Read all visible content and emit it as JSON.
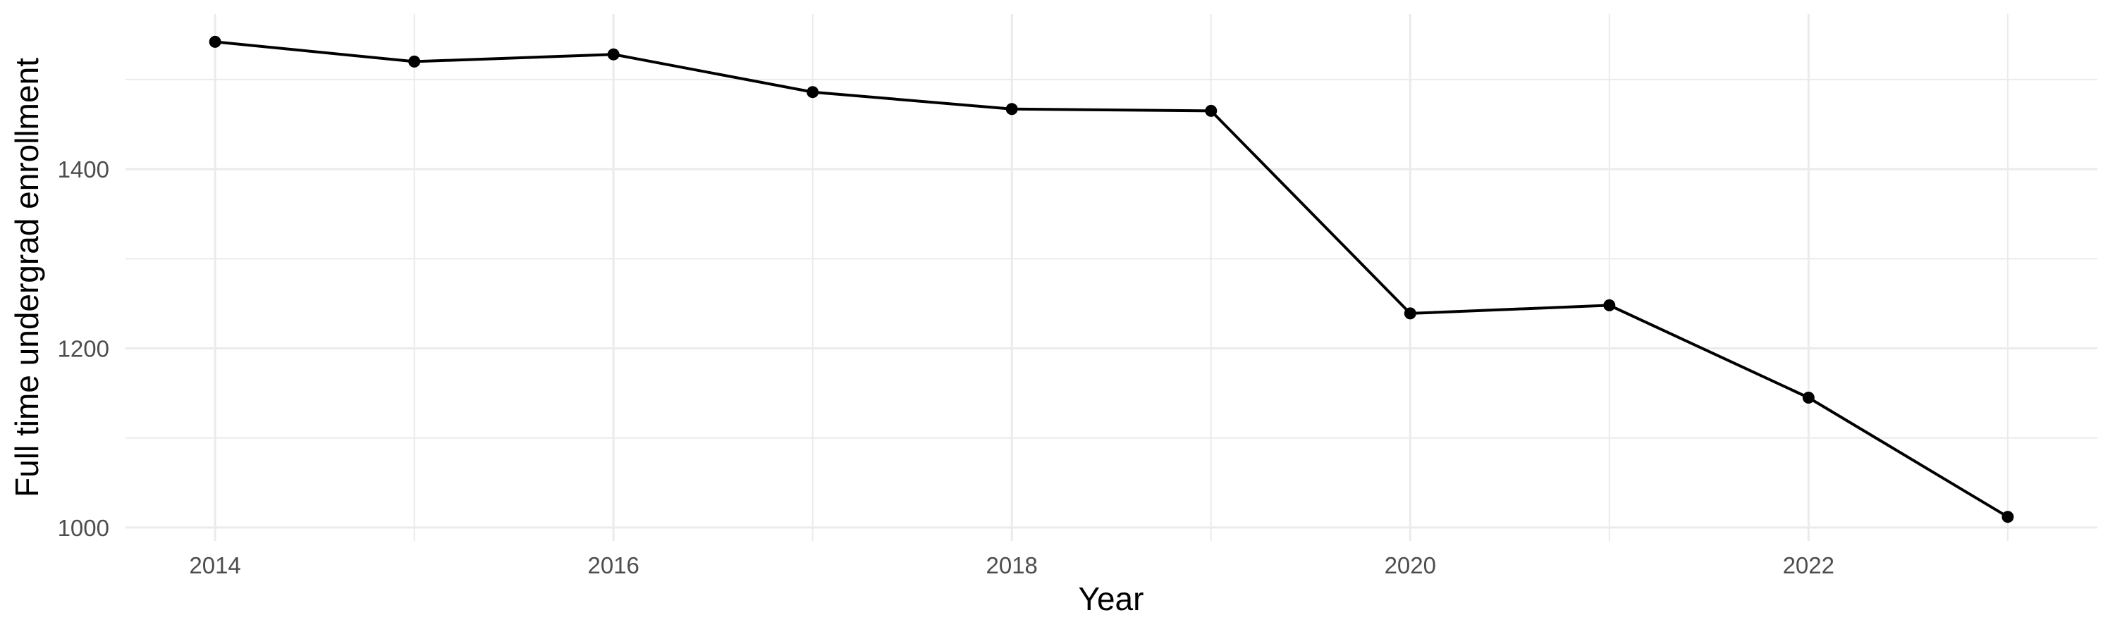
{
  "chart_data": {
    "type": "line",
    "title": "",
    "xlabel": "Year",
    "ylabel": "Full time undergrad enrollment",
    "x": [
      2014,
      2015,
      2016,
      2017,
      2018,
      2019,
      2020,
      2021,
      2022,
      2023
    ],
    "values": [
      1542,
      1520,
      1528,
      1486,
      1467,
      1465,
      1239,
      1248,
      1145,
      1012
    ],
    "series_name": "Full time undergrad enrollment",
    "x_major_ticks": [
      2014,
      2016,
      2018,
      2020,
      2022
    ],
    "x_minor_gridlines": [
      2015,
      2017,
      2019,
      2021,
      2023
    ],
    "y_major_ticks": [
      1000,
      1200,
      1400
    ],
    "y_minor_gridlines": [
      1100,
      1300,
      1500
    ],
    "xlim": [
      2013.55,
      2023.45
    ],
    "ylim": [
      985,
      1573
    ],
    "grid": "major and minor, no axis lines, no tick marks (theme_minimal)",
    "legend": false,
    "marker": "filled circle",
    "colors": {
      "line": "#000000",
      "point": "#000000",
      "gridline": "#EBEBEB",
      "tick_label": "#4D4D4D",
      "axis_title": "#000000",
      "background": "#FFFFFF"
    }
  }
}
